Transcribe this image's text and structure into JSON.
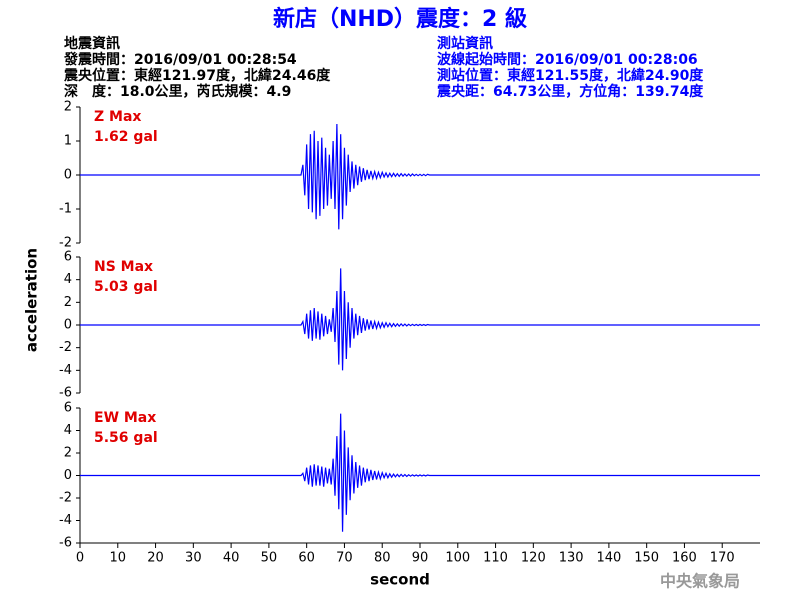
{
  "header": {
    "title": "新店（NHD）震度：2 級",
    "left": [
      "地震資訊",
      "發震時間：2016/09/01 00:28:54",
      "震央位置：東經121.97度，北緯24.46度",
      "深　度：18.0公里，芮氏規模：4.9"
    ],
    "right": [
      "測站資訊",
      "波線起始時間：2016/09/01 00:28:06",
      "測站位置：東經121.55度，北緯24.90度",
      "震央距：64.73公里，方位角：139.74度"
    ],
    "watermark": "中央氣象局"
  },
  "axes": {
    "ylabel": "acceleration",
    "xlabel": "second"
  },
  "chart_data": [
    {
      "type": "line",
      "annotation": [
        "Z Max",
        "1.62 gal"
      ],
      "color": "#0000ff",
      "xlim": [
        0,
        180
      ],
      "ylim": [
        -2,
        2
      ],
      "yticks": [
        -2,
        -1,
        0,
        1,
        2
      ],
      "x": [
        0,
        58.5,
        59,
        59.5,
        60,
        60.5,
        61,
        61.5,
        62,
        62.5,
        63,
        63.5,
        64,
        64.5,
        65,
        65.5,
        66,
        66.5,
        67,
        67.5,
        68,
        68.5,
        69,
        69.5,
        70,
        70.5,
        71,
        71.5,
        72,
        72.5,
        73,
        73.5,
        74,
        74.5,
        75,
        75.5,
        76,
        76.5,
        77,
        77.5,
        78,
        78.5,
        79,
        79.5,
        80,
        80.5,
        81,
        81.5,
        82,
        82.5,
        83,
        83.5,
        84,
        84.5,
        85,
        85.5,
        86,
        86.5,
        87,
        87.5,
        88,
        88.5,
        89,
        89.5,
        90,
        90.5,
        91,
        91.5,
        92,
        92.5,
        180
      ],
      "values": [
        0,
        0,
        0.3,
        -0.6,
        0.9,
        -1.0,
        1.2,
        -1.1,
        1.3,
        -1.3,
        1.0,
        -1.2,
        1.1,
        -1.0,
        0.8,
        -0.9,
        0.6,
        -0.7,
        1.0,
        -1.0,
        1.5,
        -1.6,
        1.2,
        -1.3,
        0.8,
        -0.9,
        0.6,
        -0.5,
        0.4,
        -0.4,
        0.3,
        -0.3,
        0.25,
        -0.2,
        0.2,
        -0.15,
        0.15,
        -0.12,
        0.12,
        -0.1,
        0.1,
        -0.1,
        0.08,
        -0.08,
        0.08,
        -0.06,
        0.06,
        -0.06,
        0.05,
        -0.05,
        0.05,
        -0.04,
        0.04,
        -0.04,
        0.04,
        -0.03,
        0.03,
        -0.03,
        0.03,
        -0.03,
        0.03,
        -0.02,
        0.02,
        -0.02,
        0.02,
        -0.02,
        0.02,
        -0.02,
        0.02,
        0,
        0
      ]
    },
    {
      "type": "line",
      "annotation": [
        "NS Max",
        "5.03 gal"
      ],
      "color": "#0000ff",
      "xlim": [
        0,
        180
      ],
      "ylim": [
        -6,
        6
      ],
      "yticks": [
        -6,
        -4,
        -2,
        0,
        2,
        4,
        6
      ],
      "x": [
        0,
        58.5,
        59,
        59.5,
        60,
        60.5,
        61,
        61.5,
        62,
        62.5,
        63,
        63.5,
        64,
        64.5,
        65,
        65.5,
        66,
        66.5,
        67,
        67.5,
        68,
        68.5,
        69,
        69.5,
        70,
        70.5,
        71,
        71.5,
        72,
        72.5,
        73,
        73.5,
        74,
        74.5,
        75,
        75.5,
        76,
        76.5,
        77,
        77.5,
        78,
        78.5,
        79,
        79.5,
        80,
        80.5,
        81,
        81.5,
        82,
        82.5,
        83,
        83.5,
        84,
        84.5,
        85,
        85.5,
        86,
        86.5,
        87,
        87.5,
        88,
        88.5,
        89,
        89.5,
        90,
        90.5,
        91,
        91.5,
        92,
        92.5,
        180
      ],
      "values": [
        0,
        0,
        0.3,
        -0.8,
        1.0,
        -1.2,
        1.3,
        -1.4,
        1.5,
        -1.2,
        1.2,
        -1.3,
        1.0,
        -1.0,
        0.8,
        -0.8,
        0.5,
        -0.6,
        1.5,
        -1.5,
        3.0,
        -3.5,
        5.0,
        -4.0,
        3.0,
        -3.0,
        2.0,
        -2.0,
        1.5,
        -1.2,
        1.0,
        -0.9,
        0.8,
        -0.7,
        0.6,
        -0.5,
        0.5,
        -0.4,
        0.4,
        -0.35,
        0.3,
        -0.3,
        0.25,
        -0.25,
        0.2,
        -0.2,
        0.2,
        -0.15,
        0.15,
        -0.15,
        0.12,
        -0.12,
        0.1,
        -0.1,
        0.1,
        -0.08,
        0.08,
        -0.08,
        0.06,
        -0.06,
        0.06,
        -0.05,
        0.05,
        -0.05,
        0.05,
        -0.04,
        0.04,
        -0.04,
        0.04,
        0,
        0
      ]
    },
    {
      "type": "line",
      "annotation": [
        "EW Max",
        "5.56 gal"
      ],
      "color": "#0000ff",
      "xlim": [
        0,
        180
      ],
      "ylim": [
        -6,
        6
      ],
      "yticks": [
        -6,
        -4,
        -2,
        0,
        2,
        4,
        6
      ],
      "xticks": [
        0,
        10,
        20,
        30,
        40,
        50,
        60,
        70,
        80,
        90,
        100,
        110,
        120,
        130,
        140,
        150,
        160,
        170
      ],
      "x": [
        0,
        58.5,
        59,
        59.5,
        60,
        60.5,
        61,
        61.5,
        62,
        62.5,
        63,
        63.5,
        64,
        64.5,
        65,
        65.5,
        66,
        66.5,
        67,
        67.5,
        68,
        68.5,
        69,
        69.5,
        70,
        70.5,
        71,
        71.5,
        72,
        72.5,
        73,
        73.5,
        74,
        74.5,
        75,
        75.5,
        76,
        76.5,
        77,
        77.5,
        78,
        78.5,
        79,
        79.5,
        80,
        80.5,
        81,
        81.5,
        82,
        82.5,
        83,
        83.5,
        84,
        84.5,
        85,
        85.5,
        86,
        86.5,
        87,
        87.5,
        88,
        88.5,
        89,
        89.5,
        90,
        90.5,
        91,
        91.5,
        92,
        92.5,
        180
      ],
      "values": [
        0,
        0,
        0.2,
        -0.5,
        0.7,
        -0.8,
        0.9,
        -1.0,
        1.0,
        -0.9,
        0.9,
        -0.9,
        0.8,
        -1.0,
        0.7,
        -0.7,
        0.6,
        -0.8,
        1.5,
        -1.8,
        3.5,
        -3.0,
        5.5,
        -5.0,
        4.0,
        -3.5,
        2.5,
        -2.2,
        1.8,
        -1.6,
        1.2,
        -1.1,
        0.9,
        -0.9,
        0.7,
        -0.6,
        0.6,
        -0.5,
        0.5,
        -0.4,
        0.4,
        -0.35,
        0.3,
        -0.3,
        0.25,
        -0.2,
        0.2,
        -0.2,
        0.15,
        -0.15,
        0.12,
        -0.12,
        0.1,
        -0.1,
        0.1,
        -0.08,
        0.08,
        -0.08,
        0.06,
        -0.06,
        0.06,
        -0.05,
        0.05,
        -0.05,
        0.05,
        -0.04,
        0.04,
        -0.04,
        0.04,
        0,
        0
      ]
    }
  ]
}
